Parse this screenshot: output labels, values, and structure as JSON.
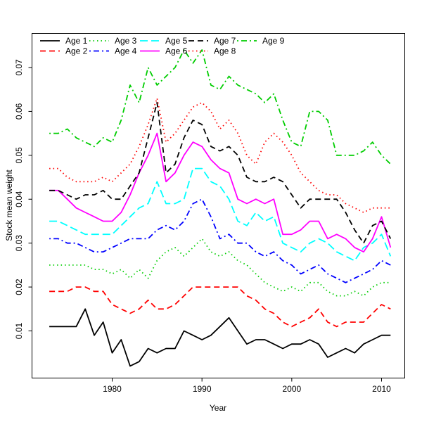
{
  "chart_data": {
    "type": "line",
    "title": "",
    "xlabel": "Year",
    "ylabel": "Stock mean weight",
    "x_ticks": [
      1980,
      1990,
      2000,
      2010
    ],
    "y_ticks": [
      0.01,
      0.02,
      0.03,
      0.04,
      0.05,
      0.06,
      0.07
    ],
    "xlim": [
      1971.5,
      2012.5
    ],
    "ylim": [
      0.0,
      0.078
    ],
    "grid": false,
    "legend_position": "top-left inside plot, 2 rows x 5 columns, no frame",
    "years": [
      1973,
      1974,
      1975,
      1976,
      1977,
      1978,
      1979,
      1980,
      1981,
      1982,
      1983,
      1984,
      1985,
      1986,
      1987,
      1988,
      1989,
      1990,
      1991,
      1992,
      1993,
      1994,
      1995,
      1996,
      1997,
      1998,
      1999,
      2000,
      2001,
      2002,
      2003,
      2004,
      2005,
      2006,
      2007,
      2008,
      2009,
      2010,
      2011
    ],
    "series": [
      {
        "name": "Age 1",
        "color": "#000000",
        "linestyle": "solid",
        "values": [
          0.011,
          0.011,
          0.011,
          0.011,
          0.015,
          0.009,
          0.012,
          0.005,
          0.008,
          0.002,
          0.003,
          0.006,
          0.005,
          0.006,
          0.006,
          0.01,
          0.009,
          0.008,
          0.009,
          0.011,
          0.013,
          0.01,
          0.007,
          0.008,
          0.008,
          0.007,
          0.006,
          0.007,
          0.007,
          0.008,
          0.007,
          0.004,
          0.005,
          0.006,
          0.005,
          0.007,
          0.008,
          0.009,
          0.009
        ]
      },
      {
        "name": "Age 2",
        "color": "#ff0000",
        "linestyle": "dashed",
        "values": [
          0.019,
          0.019,
          0.019,
          0.02,
          0.02,
          0.019,
          0.019,
          0.016,
          0.015,
          0.014,
          0.015,
          0.017,
          0.015,
          0.015,
          0.016,
          0.018,
          0.02,
          0.02,
          0.02,
          0.02,
          0.02,
          0.02,
          0.018,
          0.017,
          0.015,
          0.014,
          0.012,
          0.011,
          0.012,
          0.013,
          0.015,
          0.012,
          0.011,
          0.012,
          0.012,
          0.012,
          0.014,
          0.016,
          0.015
        ]
      },
      {
        "name": "Age 3",
        "color": "#00cd00",
        "linestyle": "dotted",
        "values": [
          0.025,
          0.025,
          0.025,
          0.025,
          0.025,
          0.024,
          0.024,
          0.023,
          0.024,
          0.022,
          0.024,
          0.022,
          0.026,
          0.028,
          0.029,
          0.027,
          0.029,
          0.031,
          0.028,
          0.027,
          0.028,
          0.026,
          0.025,
          0.023,
          0.021,
          0.02,
          0.019,
          0.02,
          0.019,
          0.021,
          0.021,
          0.019,
          0.018,
          0.018,
          0.019,
          0.018,
          0.02,
          0.021,
          0.021
        ]
      },
      {
        "name": "Age 4",
        "color": "#0000ff",
        "linestyle": "dashdot",
        "values": [
          0.031,
          0.031,
          0.03,
          0.03,
          0.029,
          0.028,
          0.028,
          0.029,
          0.03,
          0.031,
          0.031,
          0.031,
          0.033,
          0.034,
          0.033,
          0.035,
          0.039,
          0.04,
          0.036,
          0.031,
          0.032,
          0.03,
          0.03,
          0.028,
          0.027,
          0.028,
          0.026,
          0.025,
          0.023,
          0.024,
          0.025,
          0.023,
          0.022,
          0.021,
          0.022,
          0.023,
          0.024,
          0.026,
          0.025
        ]
      },
      {
        "name": "Age 5",
        "color": "#00ffff",
        "linestyle": "longdash",
        "values": [
          0.035,
          0.035,
          0.034,
          0.033,
          0.032,
          0.032,
          0.032,
          0.032,
          0.034,
          0.036,
          0.038,
          0.039,
          0.044,
          0.039,
          0.039,
          0.04,
          0.047,
          0.047,
          0.044,
          0.043,
          0.04,
          0.035,
          0.034,
          0.037,
          0.035,
          0.036,
          0.03,
          0.029,
          0.028,
          0.03,
          0.031,
          0.03,
          0.028,
          0.027,
          0.026,
          0.029,
          0.03,
          0.032,
          0.027
        ]
      },
      {
        "name": "Age 6",
        "color": "#ff00ff",
        "linestyle": "solid",
        "values": [
          0.042,
          0.042,
          0.04,
          0.038,
          0.037,
          0.036,
          0.035,
          0.035,
          0.037,
          0.041,
          0.046,
          0.05,
          0.055,
          0.044,
          0.046,
          0.05,
          0.053,
          0.052,
          0.049,
          0.047,
          0.046,
          0.04,
          0.039,
          0.04,
          0.039,
          0.04,
          0.032,
          0.032,
          0.033,
          0.035,
          0.035,
          0.031,
          0.032,
          0.031,
          0.029,
          0.028,
          0.031,
          0.036,
          0.029
        ]
      },
      {
        "name": "Age 7",
        "color": "#000000",
        "linestyle": "dashed",
        "values": [
          0.042,
          0.042,
          0.041,
          0.04,
          0.041,
          0.041,
          0.042,
          0.04,
          0.04,
          0.043,
          0.046,
          0.054,
          0.062,
          0.046,
          0.048,
          0.054,
          0.058,
          0.057,
          0.052,
          0.051,
          0.052,
          0.05,
          0.045,
          0.044,
          0.044,
          0.045,
          0.044,
          0.041,
          0.038,
          0.04,
          0.04,
          0.04,
          0.04,
          0.037,
          0.033,
          0.03,
          0.034,
          0.035,
          0.031
        ]
      },
      {
        "name": "Age 8",
        "color": "#ff0000",
        "linestyle": "dotted",
        "values": [
          0.047,
          0.047,
          0.045,
          0.044,
          0.044,
          0.044,
          0.045,
          0.044,
          0.046,
          0.048,
          0.052,
          0.057,
          0.063,
          0.053,
          0.055,
          0.058,
          0.061,
          0.062,
          0.06,
          0.056,
          0.058,
          0.055,
          0.05,
          0.048,
          0.053,
          0.055,
          0.053,
          0.05,
          0.046,
          0.044,
          0.042,
          0.041,
          0.041,
          0.039,
          0.038,
          0.037,
          0.038,
          0.038,
          0.038
        ]
      },
      {
        "name": "Age 9",
        "color": "#00cd00",
        "linestyle": "dashdot",
        "values": [
          0.055,
          0.055,
          0.056,
          0.054,
          0.053,
          0.052,
          0.054,
          0.053,
          0.058,
          0.066,
          0.062,
          0.07,
          0.066,
          0.068,
          0.07,
          0.074,
          0.071,
          0.074,
          0.066,
          0.065,
          0.068,
          0.066,
          0.065,
          0.064,
          0.062,
          0.064,
          0.058,
          0.053,
          0.052,
          0.06,
          0.06,
          0.058,
          0.05,
          0.05,
          0.05,
          0.051,
          0.053,
          0.05,
          0.048
        ]
      }
    ]
  }
}
